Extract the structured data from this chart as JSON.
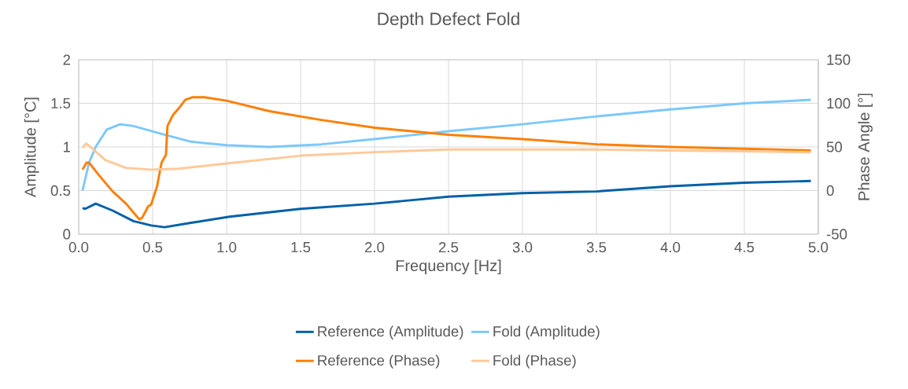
{
  "chart_data": {
    "type": "line",
    "title": "Depth Defect Fold",
    "xlabel": "Frequency [Hz]",
    "ylabel": "Amplitude [°C]",
    "y2label": "Phase Angle [°]",
    "xlim": [
      0,
      5
    ],
    "ylim": [
      0,
      2
    ],
    "y2lim": [
      -50,
      150
    ],
    "xticks": [
      {
        "value": 0,
        "label": "0.0"
      },
      {
        "value": 0.5,
        "label": "0.5"
      },
      {
        "value": 1,
        "label": "1.0"
      },
      {
        "value": 1.5,
        "label": "1.5"
      },
      {
        "value": 2,
        "label": "2.0"
      },
      {
        "value": 2.5,
        "label": "2.5"
      },
      {
        "value": 3,
        "label": "3.0"
      },
      {
        "value": 3.5,
        "label": "3.5"
      },
      {
        "value": 4,
        "label": "4.0"
      },
      {
        "value": 4.5,
        "label": "4.5"
      },
      {
        "value": 5,
        "label": "5.0"
      }
    ],
    "yticks": [
      0,
      0.5,
      1,
      1.5,
      2
    ],
    "y2ticks": [
      -50,
      0,
      50,
      100,
      150
    ],
    "grid": true,
    "legend": "bottom",
    "line_style": "solid",
    "series": [
      {
        "name": "Reference (Amplitude)",
        "color": "#0060a8",
        "x": [
          0.026,
          0.044,
          0.115,
          0.23,
          0.37,
          0.49,
          0.58,
          0.76,
          1.02,
          1.5,
          2.0,
          2.5,
          3.0,
          3.5,
          4.0,
          4.5,
          4.95
        ],
        "values": [
          0.3,
          0.29,
          0.35,
          0.27,
          0.15,
          0.1,
          0.08,
          0.13,
          0.2,
          0.29,
          0.35,
          0.43,
          0.47,
          0.49,
          0.55,
          0.59,
          0.61
        ]
      },
      {
        "name": "Fold (Amplitude)",
        "color": "#7cc8fb",
        "x": [
          0.026,
          0.07,
          0.115,
          0.19,
          0.28,
          0.37,
          0.58,
          0.76,
          1.0,
          1.29,
          1.64,
          2.0,
          2.5,
          3.0,
          3.5,
          4.0,
          4.5,
          4.95
        ],
        "values": [
          0.5,
          0.82,
          1.0,
          1.2,
          1.26,
          1.24,
          1.14,
          1.06,
          1.02,
          1.0,
          1.03,
          1.09,
          1.18,
          1.26,
          1.35,
          1.43,
          1.5,
          1.54
        ]
      },
      {
        "name": "Reference (Phase)",
        "color": "#ff7f00",
        "axis": "y2",
        "x": [
          0.026,
          0.053,
          0.07,
          0.14,
          0.23,
          0.32,
          0.39,
          0.41,
          0.43,
          0.47,
          0.49,
          0.53,
          0.56,
          0.59,
          0.6,
          0.635,
          0.68,
          0.72,
          0.77,
          0.85,
          1.0,
          1.29,
          1.64,
          2.0,
          2.5,
          3.0,
          3.5,
          4.0,
          4.5,
          4.95
        ],
        "values": [
          24,
          32,
          32,
          17,
          -1,
          -15,
          -29,
          -33,
          -31,
          -18,
          -16,
          5,
          32,
          41,
          74,
          86,
          95,
          104,
          107,
          107,
          103,
          91,
          81,
          72,
          64,
          59,
          53,
          50,
          48,
          46
        ]
      },
      {
        "name": "Fold (Phase)",
        "color": "#ffc999",
        "axis": "y2",
        "x": [
          0.026,
          0.05,
          0.08,
          0.18,
          0.32,
          0.49,
          0.67,
          1.0,
          1.5,
          2.0,
          2.5,
          3.0,
          3.5,
          4.0,
          4.5,
          4.95
        ],
        "values": [
          49,
          54,
          50,
          35,
          26,
          24,
          25,
          31,
          40,
          44,
          47,
          47,
          47,
          46,
          45,
          44
        ]
      }
    ]
  }
}
